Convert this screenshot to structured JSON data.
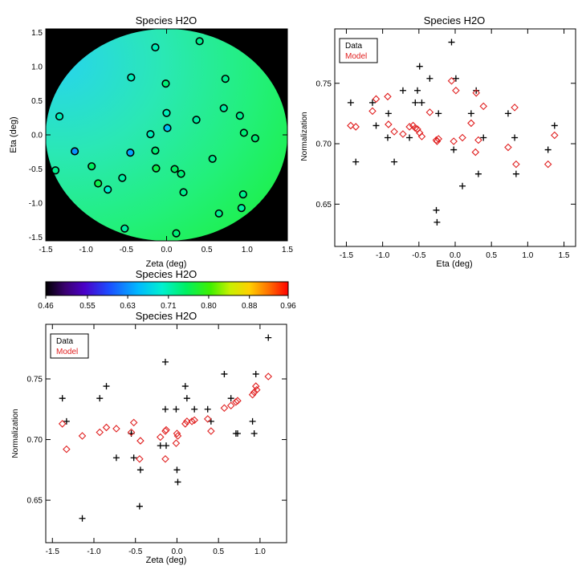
{
  "chart_data": [
    {
      "id": "map",
      "type": "scatter",
      "title": "Species H2O",
      "xlabel": "Zeta (deg)",
      "ylabel": "Eta (deg)",
      "xlim": [
        -1.5,
        1.5
      ],
      "ylim": [
        -1.55,
        1.55
      ],
      "xticks": [
        "-1.5",
        "-1.0",
        "-0.5",
        "0.0",
        "0.5",
        "1.0",
        "1.5"
      ],
      "xtick_values": [
        -1.5,
        -1.0,
        -0.5,
        0.0,
        0.5,
        1.0,
        1.5
      ],
      "yticks": [
        "-1.5",
        "-1.0",
        "-0.5",
        "0.0",
        "0.5",
        "1.0",
        "1.5"
      ],
      "ytick_values": [
        -1.5,
        -1.0,
        -0.5,
        0.0,
        0.5,
        1.0,
        1.5
      ],
      "background_color": "#000000",
      "field_description": "model surface inside a circular field of radius 1.5 deg",
      "points": [
        {
          "x": -1.38,
          "y": -0.52,
          "v": 0.73
        },
        {
          "x": -1.33,
          "y": 0.27,
          "v": 0.71
        },
        {
          "x": -1.14,
          "y": -0.24,
          "v": 0.63
        },
        {
          "x": -0.93,
          "y": -0.46,
          "v": 0.75
        },
        {
          "x": -0.85,
          "y": -0.71,
          "v": 0.76
        },
        {
          "x": -0.73,
          "y": -0.8,
          "v": 0.7
        },
        {
          "x": -0.55,
          "y": -0.63,
          "v": 0.72
        },
        {
          "x": -0.52,
          "y": -1.37,
          "v": 0.72
        },
        {
          "x": -0.45,
          "y": -0.26,
          "v": 0.64
        },
        {
          "x": -0.44,
          "y": 0.84,
          "v": 0.71
        },
        {
          "x": -0.14,
          "y": 1.28,
          "v": 0.71
        },
        {
          "x": -0.2,
          "y": 0.01,
          "v": 0.71
        },
        {
          "x": -0.14,
          "y": -0.23,
          "v": 0.74
        },
        {
          "x": -0.13,
          "y": -0.49,
          "v": 0.76
        },
        {
          "x": -0.01,
          "y": 0.75,
          "v": 0.74
        },
        {
          "x": 0.0,
          "y": 0.32,
          "v": 0.71
        },
        {
          "x": 0.01,
          "y": 0.1,
          "v": 0.66
        },
        {
          "x": 0.1,
          "y": -0.5,
          "v": 0.75
        },
        {
          "x": 0.12,
          "y": -1.44,
          "v": 0.74
        },
        {
          "x": 0.18,
          "y": -0.57,
          "v": 0.74
        },
        {
          "x": 0.21,
          "y": -0.84,
          "v": 0.73
        },
        {
          "x": 0.37,
          "y": 0.22,
          "v": 0.72
        },
        {
          "x": 0.41,
          "y": 1.37,
          "v": 0.73
        },
        {
          "x": 0.57,
          "y": -0.35,
          "v": 0.73
        },
        {
          "x": 0.65,
          "y": -1.15,
          "v": 0.73
        },
        {
          "x": 0.71,
          "y": 0.39,
          "v": 0.72
        },
        {
          "x": 0.73,
          "y": 0.82,
          "v": 0.73
        },
        {
          "x": 0.91,
          "y": 0.28,
          "v": 0.73
        },
        {
          "x": 0.93,
          "y": -1.07,
          "v": 0.72
        },
        {
          "x": 0.95,
          "y": -0.87,
          "v": 0.73
        },
        {
          "x": 0.96,
          "y": 0.03,
          "v": 0.74
        },
        {
          "x": 1.1,
          "y": -0.05,
          "v": 0.74
        }
      ]
    },
    {
      "id": "colorbar",
      "type": "heatmap",
      "title": "Species H2O",
      "range": [
        0.46,
        0.96
      ],
      "tick_labels": [
        "0.46",
        "0.55",
        "0.63",
        "0.71",
        "0.80",
        "0.88",
        "0.96"
      ],
      "tick_values": [
        0.46,
        0.546,
        0.629,
        0.713,
        0.796,
        0.88,
        0.96
      ]
    },
    {
      "id": "eta_plot",
      "type": "scatter",
      "title": "Species H2O",
      "xlabel": "Eta (deg)",
      "ylabel": "Normalization",
      "xlim": [
        -1.66,
        1.66
      ],
      "ylim": [
        0.615,
        0.795
      ],
      "xticks": [
        "-1.5",
        "-1.0",
        "-0.5",
        "0.0",
        "0.5",
        "1.0",
        "1.5"
      ],
      "xtick_values": [
        -1.5,
        -1.0,
        -0.5,
        0.0,
        0.5,
        1.0,
        1.5
      ],
      "yticks": [
        "0.65",
        "0.70",
        "0.75"
      ],
      "ytick_values": [
        0.65,
        0.7,
        0.75
      ],
      "legend": [
        "Data",
        "Model"
      ],
      "legend_position": "top-left",
      "series": [
        {
          "name": "Data",
          "marker": "plus",
          "color": "#000000",
          "points": [
            [
              -1.44,
              0.734
            ],
            [
              -1.37,
              0.685
            ],
            [
              -1.14,
              0.734
            ],
            [
              -1.09,
              0.715
            ],
            [
              -0.93,
              0.705
            ],
            [
              -0.92,
              0.725
            ],
            [
              -0.84,
              0.685
            ],
            [
              -0.72,
              0.744
            ],
            [
              -0.63,
              0.705
            ],
            [
              -0.55,
              0.734
            ],
            [
              -0.52,
              0.744
            ],
            [
              -0.49,
              0.764
            ],
            [
              -0.46,
              0.734
            ],
            [
              -0.35,
              0.754
            ],
            [
              -0.26,
              0.645
            ],
            [
              -0.25,
              0.635
            ],
            [
              -0.23,
              0.725
            ],
            [
              -0.05,
              0.784
            ],
            [
              -0.02,
              0.695
            ],
            [
              0.01,
              0.754
            ],
            [
              0.1,
              0.665
            ],
            [
              0.22,
              0.725
            ],
            [
              0.29,
              0.744
            ],
            [
              0.32,
              0.675
            ],
            [
              0.39,
              0.705
            ],
            [
              0.73,
              0.725
            ],
            [
              0.82,
              0.705
            ],
            [
              0.84,
              0.675
            ],
            [
              1.28,
              0.695
            ],
            [
              1.37,
              0.715
            ]
          ]
        },
        {
          "name": "Model",
          "marker": "diamond",
          "color": "#e02020",
          "points": [
            [
              -1.44,
              0.715
            ],
            [
              -1.37,
              0.714
            ],
            [
              -1.14,
              0.727
            ],
            [
              -1.09,
              0.737
            ],
            [
              -0.93,
              0.739
            ],
            [
              -0.92,
              0.716
            ],
            [
              -0.84,
              0.71
            ],
            [
              -0.72,
              0.708
            ],
            [
              -0.63,
              0.714
            ],
            [
              -0.55,
              0.713
            ],
            [
              -0.52,
              0.712
            ],
            [
              -0.49,
              0.709
            ],
            [
              -0.46,
              0.706
            ],
            [
              -0.35,
              0.726
            ],
            [
              -0.26,
              0.703
            ],
            [
              -0.25,
              0.702
            ],
            [
              -0.23,
              0.704
            ],
            [
              -0.05,
              0.752
            ],
            [
              -0.02,
              0.702
            ],
            [
              0.01,
              0.744
            ],
            [
              0.1,
              0.705
            ],
            [
              0.22,
              0.717
            ],
            [
              0.29,
              0.742
            ],
            [
              0.32,
              0.703
            ],
            [
              0.39,
              0.731
            ],
            [
              0.73,
              0.697
            ],
            [
              0.82,
              0.73
            ],
            [
              0.84,
              0.683
            ],
            [
              1.28,
              0.683
            ],
            [
              1.37,
              0.707
            ],
            [
              -0.58,
              0.715
            ],
            [
              0.28,
              0.693
            ]
          ]
        }
      ]
    },
    {
      "id": "zeta_plot",
      "type": "scatter",
      "title": "Species H2O",
      "xlabel": "Zeta (deg)",
      "ylabel": "Normalization",
      "xlim": [
        -1.58,
        1.32
      ],
      "ylim": [
        0.615,
        0.795
      ],
      "xticks": [
        "-1.5",
        "-1.0",
        "-0.5",
        "0.0",
        "0.5",
        "1.0"
      ],
      "xtick_values": [
        -1.5,
        -1.0,
        -0.5,
        0.0,
        0.5,
        1.0
      ],
      "yticks": [
        "0.65",
        "0.70",
        "0.75"
      ],
      "ytick_values": [
        0.65,
        0.7,
        0.75
      ],
      "legend": [
        "Data",
        "Model"
      ],
      "legend_position": "top-left",
      "series": [
        {
          "name": "Data",
          "marker": "plus",
          "color": "#000000",
          "points": [
            [
              -1.38,
              0.734
            ],
            [
              -1.33,
              0.715
            ],
            [
              -1.14,
              0.635
            ],
            [
              -0.93,
              0.734
            ],
            [
              -0.85,
              0.744
            ],
            [
              -0.73,
              0.685
            ],
            [
              -0.55,
              0.705
            ],
            [
              -0.52,
              0.685
            ],
            [
              -0.45,
              0.645
            ],
            [
              -0.44,
              0.675
            ],
            [
              -0.2,
              0.695
            ],
            [
              -0.14,
              0.764
            ],
            [
              -0.14,
              0.725
            ],
            [
              -0.13,
              0.695
            ],
            [
              -0.01,
              0.725
            ],
            [
              0.0,
              0.675
            ],
            [
              0.01,
              0.665
            ],
            [
              0.1,
              0.744
            ],
            [
              0.12,
              0.734
            ],
            [
              0.21,
              0.725
            ],
            [
              0.37,
              0.725
            ],
            [
              0.41,
              0.715
            ],
            [
              0.57,
              0.754
            ],
            [
              0.65,
              0.734
            ],
            [
              0.71,
              0.705
            ],
            [
              0.73,
              0.705
            ],
            [
              0.91,
              0.715
            ],
            [
              0.93,
              0.705
            ],
            [
              0.95,
              0.754
            ],
            [
              1.1,
              0.784
            ]
          ]
        },
        {
          "name": "Model",
          "marker": "diamond",
          "color": "#e02020",
          "points": [
            [
              -1.38,
              0.713
            ],
            [
              -1.33,
              0.692
            ],
            [
              -1.14,
              0.703
            ],
            [
              -0.93,
              0.706
            ],
            [
              -0.85,
              0.71
            ],
            [
              -0.73,
              0.709
            ],
            [
              -0.55,
              0.706
            ],
            [
              -0.52,
              0.714
            ],
            [
              -0.45,
              0.684
            ],
            [
              -0.44,
              0.699
            ],
            [
              -0.2,
              0.702
            ],
            [
              -0.14,
              0.707
            ],
            [
              -0.14,
              0.684
            ],
            [
              -0.13,
              0.708
            ],
            [
              -0.01,
              0.697
            ],
            [
              0.0,
              0.705
            ],
            [
              0.01,
              0.703
            ],
            [
              0.1,
              0.713
            ],
            [
              0.12,
              0.715
            ],
            [
              0.18,
              0.715
            ],
            [
              0.21,
              0.716
            ],
            [
              0.37,
              0.717
            ],
            [
              0.41,
              0.707
            ],
            [
              0.57,
              0.726
            ],
            [
              0.65,
              0.728
            ],
            [
              0.71,
              0.731
            ],
            [
              0.73,
              0.732
            ],
            [
              0.91,
              0.737
            ],
            [
              0.93,
              0.739
            ],
            [
              0.95,
              0.744
            ],
            [
              0.96,
              0.741
            ],
            [
              1.1,
              0.752
            ]
          ]
        }
      ]
    }
  ]
}
